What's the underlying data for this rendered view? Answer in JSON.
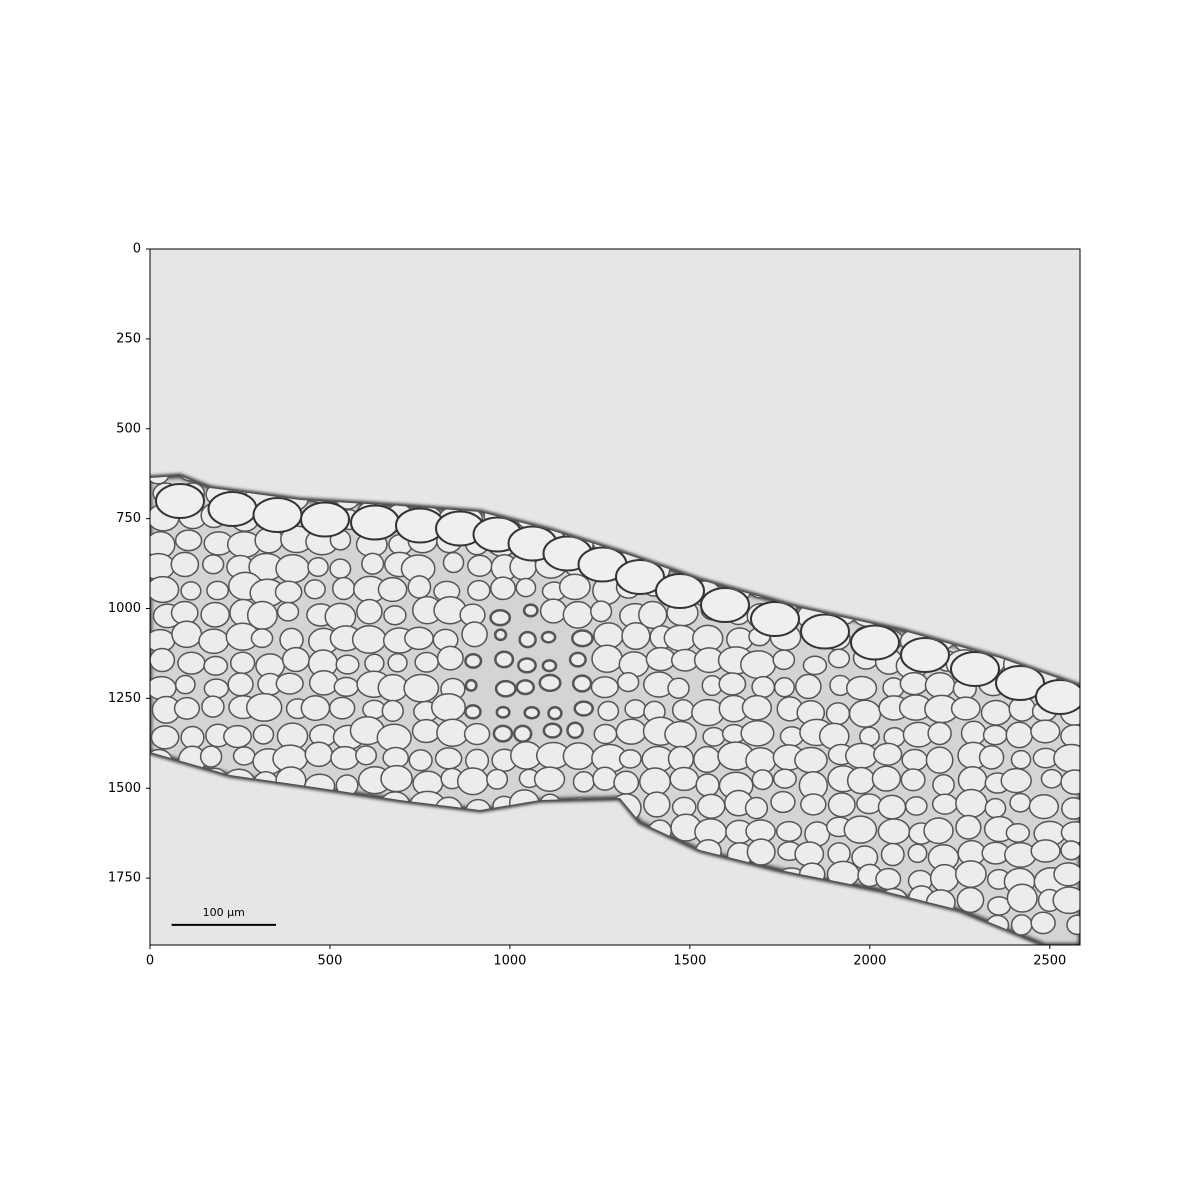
{
  "chart_data": {
    "type": "image",
    "xlim": [
      0,
      2584
    ],
    "ylim": [
      1936,
      0
    ],
    "xticks": [
      0,
      500,
      1000,
      1500,
      2000,
      2500
    ],
    "yticks": [
      0,
      250,
      500,
      750,
      1000,
      1250,
      1500,
      1750
    ],
    "scale_bar": {
      "label": "100 µm",
      "x": [
        60,
        350
      ],
      "y": 1880
    }
  }
}
